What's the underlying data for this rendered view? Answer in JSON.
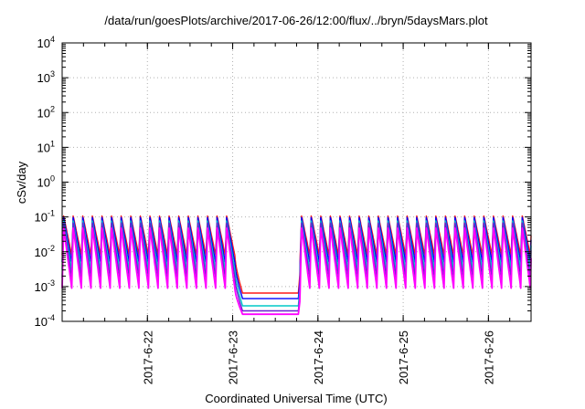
{
  "chart_data": {
    "type": "line",
    "title": "/data/run/goesPlots/archive/2017-06-26/12:00/flux/../bryn/5daysMars.plot",
    "xlabel": "Coordinated Universal Time (UTC)",
    "ylabel": "cSv/day",
    "x_range": [
      "2017-06-21 00:00",
      "2017-06-26 12:00"
    ],
    "x_ticks": [
      "2017-6-22",
      "2017-6-23",
      "2017-6-24",
      "2017-6-25",
      "2017-6-26"
    ],
    "ylim": [
      0.0001,
      10000
    ],
    "y_scale": "log",
    "y_ticks": [
      {
        "mant": "10",
        "exp": "-4",
        "value": 0.0001
      },
      {
        "mant": "10",
        "exp": "-3",
        "value": 0.001
      },
      {
        "mant": "10",
        "exp": "-2",
        "value": 0.01
      },
      {
        "mant": "10",
        "exp": "-1",
        "value": 0.1
      },
      {
        "mant": "10",
        "exp": "0",
        "value": 1
      },
      {
        "mant": "10",
        "exp": "1",
        "value": 10
      },
      {
        "mant": "10",
        "exp": "2",
        "value": 100
      },
      {
        "mant": "10",
        "exp": "3",
        "value": 1000
      },
      {
        "mant": "10",
        "exp": "4",
        "value": 10000
      }
    ],
    "grid": true,
    "orbit_period_hours": 2.7,
    "gap_start": "2017-06-23 00:36",
    "gap_end": "2017-06-23 19:00",
    "series": [
      {
        "color": "#ff1a1a",
        "peak": 0.11,
        "trough": 0.008,
        "gap_level": 0.00065
      },
      {
        "color": "#0000ff",
        "peak": 0.1,
        "trough": 0.005,
        "gap_level": 0.00045
      },
      {
        "color": "#00c8c8",
        "peak": 0.08,
        "trough": 0.003,
        "gap_level": 0.00028
      },
      {
        "color": "#6a1fd0",
        "peak": 0.07,
        "trough": 0.0018,
        "gap_level": 0.0002
      },
      {
        "color": "#ff00ff",
        "peak": 0.05,
        "trough": 0.0009,
        "gap_level": 0.00016
      }
    ]
  }
}
